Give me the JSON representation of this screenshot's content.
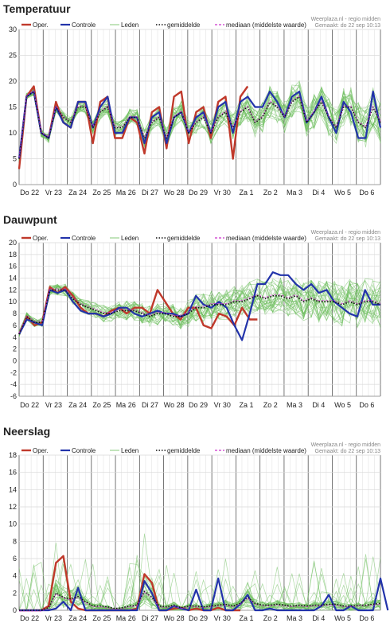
{
  "source_note": "Weerplaza.nl - regio midden",
  "made_note": "Gemaakt: do 22 sep 10:13",
  "legend": {
    "oper": "Oper.",
    "controle": "Controle",
    "leden": "Leden",
    "gemiddelde": "gemiddelde",
    "mediaan": "mediaan (middelste waarde)"
  },
  "colors": {
    "oper": "#c0392b",
    "controle": "#2233aa",
    "leden": "#66bb55",
    "gemiddelde": "#111111",
    "mediaan": "#cc33cc"
  },
  "chart_data": [
    {
      "type": "line",
      "title": "Temperatuur",
      "x_labels": [
        "Do 22",
        "Vr 23",
        "Za 24",
        "Zo 25",
        "Ma 26",
        "Di 27",
        "Wo 28",
        "Do 29",
        "Vr 30",
        "Za 1",
        "Zo 2",
        "Ma 3",
        "Di 4",
        "Wo 5",
        "Do 6"
      ],
      "ylim": [
        0,
        30
      ],
      "yticks": [
        0,
        5,
        10,
        15,
        20,
        25,
        30
      ],
      "series": [
        {
          "name": "Oper.",
          "values": [
            3,
            17,
            19,
            10,
            9,
            16,
            12,
            11,
            16,
            16,
            8,
            16,
            17,
            9,
            9,
            13,
            12,
            6,
            14,
            15,
            7,
            17,
            18,
            8,
            14,
            15,
            9,
            16,
            17,
            5,
            17,
            19
          ]
        },
        {
          "name": "Controle",
          "values": [
            5,
            17,
            18,
            10,
            9,
            15,
            12,
            11,
            16,
            16,
            11,
            15,
            17,
            10,
            10,
            13,
            13,
            8,
            13,
            14,
            8,
            13,
            14,
            10,
            13,
            14,
            10,
            15,
            16,
            10,
            16,
            17,
            15,
            15,
            18,
            16,
            13,
            17,
            18,
            12,
            14,
            17,
            13,
            10,
            16,
            14,
            9,
            9,
            18,
            11
          ]
        },
        {
          "name": "gemiddelde",
          "values": [
            5,
            17,
            18,
            10,
            9,
            15,
            13,
            12,
            15,
            15,
            11,
            14,
            15,
            11,
            11,
            13,
            13,
            9,
            12,
            13,
            9,
            13,
            14,
            10,
            12,
            13,
            10,
            13,
            14,
            11,
            14,
            15,
            12,
            13,
            16,
            15,
            13,
            16,
            17,
            12,
            14,
            16,
            13,
            11,
            15,
            15,
            12,
            11,
            15,
            12
          ]
        }
      ]
    },
    {
      "type": "line",
      "title": "Dauwpunt",
      "x_labels": [
        "Do 22",
        "Vr 23",
        "Za 24",
        "Zo 25",
        "Ma 26",
        "Di 27",
        "Wo 28",
        "Do 29",
        "Vr 30",
        "Za 1",
        "Zo 2",
        "Ma 3",
        "Di 4",
        "Wo 5",
        "Do 6"
      ],
      "ylim": [
        -6,
        20
      ],
      "yticks": [
        -6,
        -4,
        -2,
        0,
        2,
        4,
        6,
        8,
        10,
        12,
        14,
        16,
        18,
        20
      ],
      "series": [
        {
          "name": "Oper.",
          "values": [
            4.5,
            7.5,
            6,
            6.5,
            12.5,
            11.5,
            12.5,
            11,
            9,
            8,
            8,
            7.5,
            8.5,
            9,
            8,
            9,
            9,
            8,
            12,
            10,
            8,
            7,
            9,
            9,
            6,
            5.5,
            8,
            7.5,
            6,
            9,
            7,
            7
          ]
        },
        {
          "name": "Controle",
          "values": [
            4.5,
            7,
            6.5,
            6,
            12,
            11.5,
            12,
            10,
            8.5,
            8,
            8,
            7.5,
            8,
            9,
            9,
            8,
            7.5,
            8,
            8.5,
            8,
            8,
            7.5,
            8,
            11,
            9.5,
            9,
            10,
            9,
            6,
            3.5,
            8,
            13,
            13,
            15,
            14.5,
            14.5,
            13,
            12,
            13,
            11.5,
            12,
            10,
            9,
            8,
            7.5,
            12,
            9.5,
            9.5
          ]
        },
        {
          "name": "gemiddelde",
          "values": [
            4.5,
            7.5,
            6.5,
            6.5,
            12,
            12,
            12,
            10.5,
            9.5,
            9,
            8.5,
            8,
            8,
            8.5,
            8.5,
            8.5,
            8,
            7.5,
            8,
            8,
            7.5,
            7.5,
            8,
            9,
            9,
            9.5,
            9.5,
            9.5,
            10,
            10,
            10.5,
            11,
            10.5,
            11,
            11,
            10.5,
            11,
            10,
            10.5,
            10,
            10,
            10,
            9.5,
            10,
            9.5,
            10,
            10,
            9.5
          ]
        }
      ]
    },
    {
      "type": "line",
      "title": "Neerslag",
      "x_labels": [
        "Do 22",
        "Vr 23",
        "Za 24",
        "Zo 25",
        "Ma 26",
        "Di 27",
        "Wo 28",
        "Do 29",
        "Vr 30",
        "Za 1",
        "Zo 2",
        "Ma 3",
        "Di 4",
        "Wo 5",
        "Do 6"
      ],
      "ylim": [
        0,
        18
      ],
      "yticks": [
        0,
        2,
        4,
        6,
        8,
        10,
        12,
        14,
        16,
        18
      ],
      "series": [
        {
          "name": "Oper.",
          "values": [
            0,
            0,
            0,
            0,
            0.5,
            5.5,
            6.3,
            1,
            0.2,
            0,
            0,
            0,
            0,
            0,
            0,
            0,
            0.2,
            4.2,
            3.2,
            0,
            0,
            0.2,
            0.3,
            0,
            0.2,
            0,
            0,
            0.3,
            0,
            0,
            0
          ]
        },
        {
          "name": "Controle",
          "values": [
            0,
            0,
            0,
            0,
            0,
            0.2,
            1,
            0,
            2.6,
            0,
            0,
            0,
            0,
            0,
            0,
            0,
            0,
            3.4,
            2,
            0,
            0,
            0.5,
            0.2,
            0,
            2.4,
            0,
            0,
            3.7,
            0,
            0,
            0.7,
            1.8,
            0,
            0,
            0.2,
            0,
            0,
            0,
            0,
            0,
            0,
            0.5,
            1.8,
            0,
            0,
            0.5,
            0,
            0,
            0,
            3.7,
            0
          ]
        },
        {
          "name": "gemiddelde",
          "values": [
            0,
            0,
            0,
            0,
            0.3,
            2,
            1.5,
            1.3,
            1.6,
            1,
            0.5,
            0.5,
            0.4,
            0.2,
            0.3,
            0.5,
            0.6,
            2.2,
            1.5,
            0.5,
            0.4,
            0.6,
            0.3,
            0.5,
            0.5,
            0.4,
            0.5,
            0.6,
            0.7,
            0.5,
            0.8,
            1.5,
            0.8,
            0.6,
            0.6,
            0.7,
            0.6,
            0.5,
            0.6,
            0.5,
            0.6,
            0.6,
            0.7,
            0.7,
            0.5,
            0.5,
            0.6,
            0.6,
            0.7,
            0.8
          ]
        }
      ]
    }
  ]
}
